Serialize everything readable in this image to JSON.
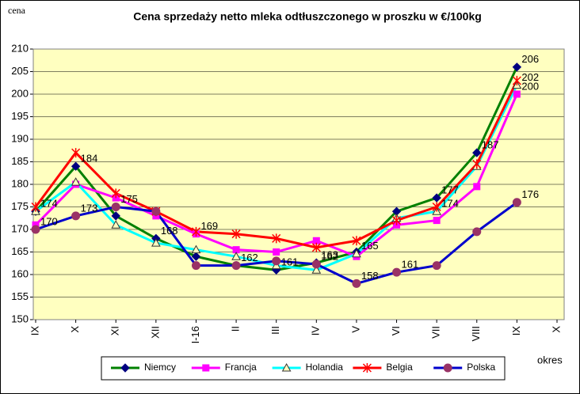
{
  "chart_data": {
    "type": "line",
    "title": "Cena sprzedaży netto mleka odtłuszczonego w proszku w €/100kg",
    "y_axis_label": "cena",
    "x_axis_label": "okres",
    "categories": [
      "IX",
      "X",
      "XI",
      "XII",
      "I-16",
      "II",
      "III",
      "IV",
      "V",
      "VI",
      "VII",
      "VIII",
      "IX",
      "X"
    ],
    "ylim": [
      150,
      210
    ],
    "yticks": [
      150,
      155,
      160,
      165,
      170,
      175,
      180,
      185,
      190,
      195,
      200,
      205,
      210
    ],
    "grid": true,
    "background": "#ffffc0",
    "legend": "bottom",
    "series": [
      {
        "name": "Niemcy",
        "color": "#008000",
        "marker": "diamond",
        "marker_color": "#000080",
        "values": [
          174,
          184,
          173,
          168,
          164,
          162,
          161,
          162.6,
          165,
          174,
          177,
          187,
          206,
          null
        ],
        "value_labels": [
          "174",
          "184",
          null,
          "168",
          null,
          "162",
          "161",
          "163",
          null,
          null,
          "177",
          "187",
          "206",
          null
        ]
      },
      {
        "name": "Francja",
        "color": "#ff00ff",
        "marker": "square",
        "marker_color": "#ff00ff",
        "values": [
          171,
          180,
          177,
          173,
          169,
          165.5,
          165,
          167.5,
          164,
          171,
          172,
          179.5,
          200,
          null
        ],
        "value_labels": [
          null,
          null,
          null,
          null,
          "169",
          null,
          null,
          null,
          null,
          null,
          null,
          null,
          "200",
          null
        ]
      },
      {
        "name": "Holandia",
        "color": "#00ffff",
        "marker": "triangle",
        "marker_color": "#ffffc0",
        "values": [
          174,
          180.5,
          171,
          167,
          165.5,
          164,
          162,
          161,
          164.6,
          172.5,
          174,
          184,
          202,
          null
        ],
        "value_labels": [
          null,
          null,
          null,
          null,
          null,
          null,
          null,
          null,
          "165",
          null,
          "174",
          null,
          "202",
          null
        ]
      },
      {
        "name": "Belgia",
        "color": "#ff0000",
        "marker": "star",
        "marker_color": "#ff0000",
        "values": [
          175,
          187,
          178,
          174,
          169.5,
          169,
          168,
          166,
          167.5,
          172,
          175,
          184.5,
          203,
          null
        ],
        "value_labels": [
          null,
          null,
          null,
          null,
          null,
          null,
          null,
          null,
          null,
          null,
          null,
          null,
          null,
          null
        ]
      },
      {
        "name": "Polska",
        "color": "#0000cc",
        "marker": "circle",
        "marker_color": "#993366",
        "values": [
          170,
          173,
          175,
          174,
          162,
          162,
          163,
          162.3,
          158,
          160.5,
          162,
          169.5,
          176,
          null
        ],
        "value_labels": [
          "170",
          "173",
          "175",
          null,
          null,
          null,
          null,
          "162",
          "158",
          "161",
          null,
          null,
          "176",
          null
        ]
      }
    ]
  }
}
